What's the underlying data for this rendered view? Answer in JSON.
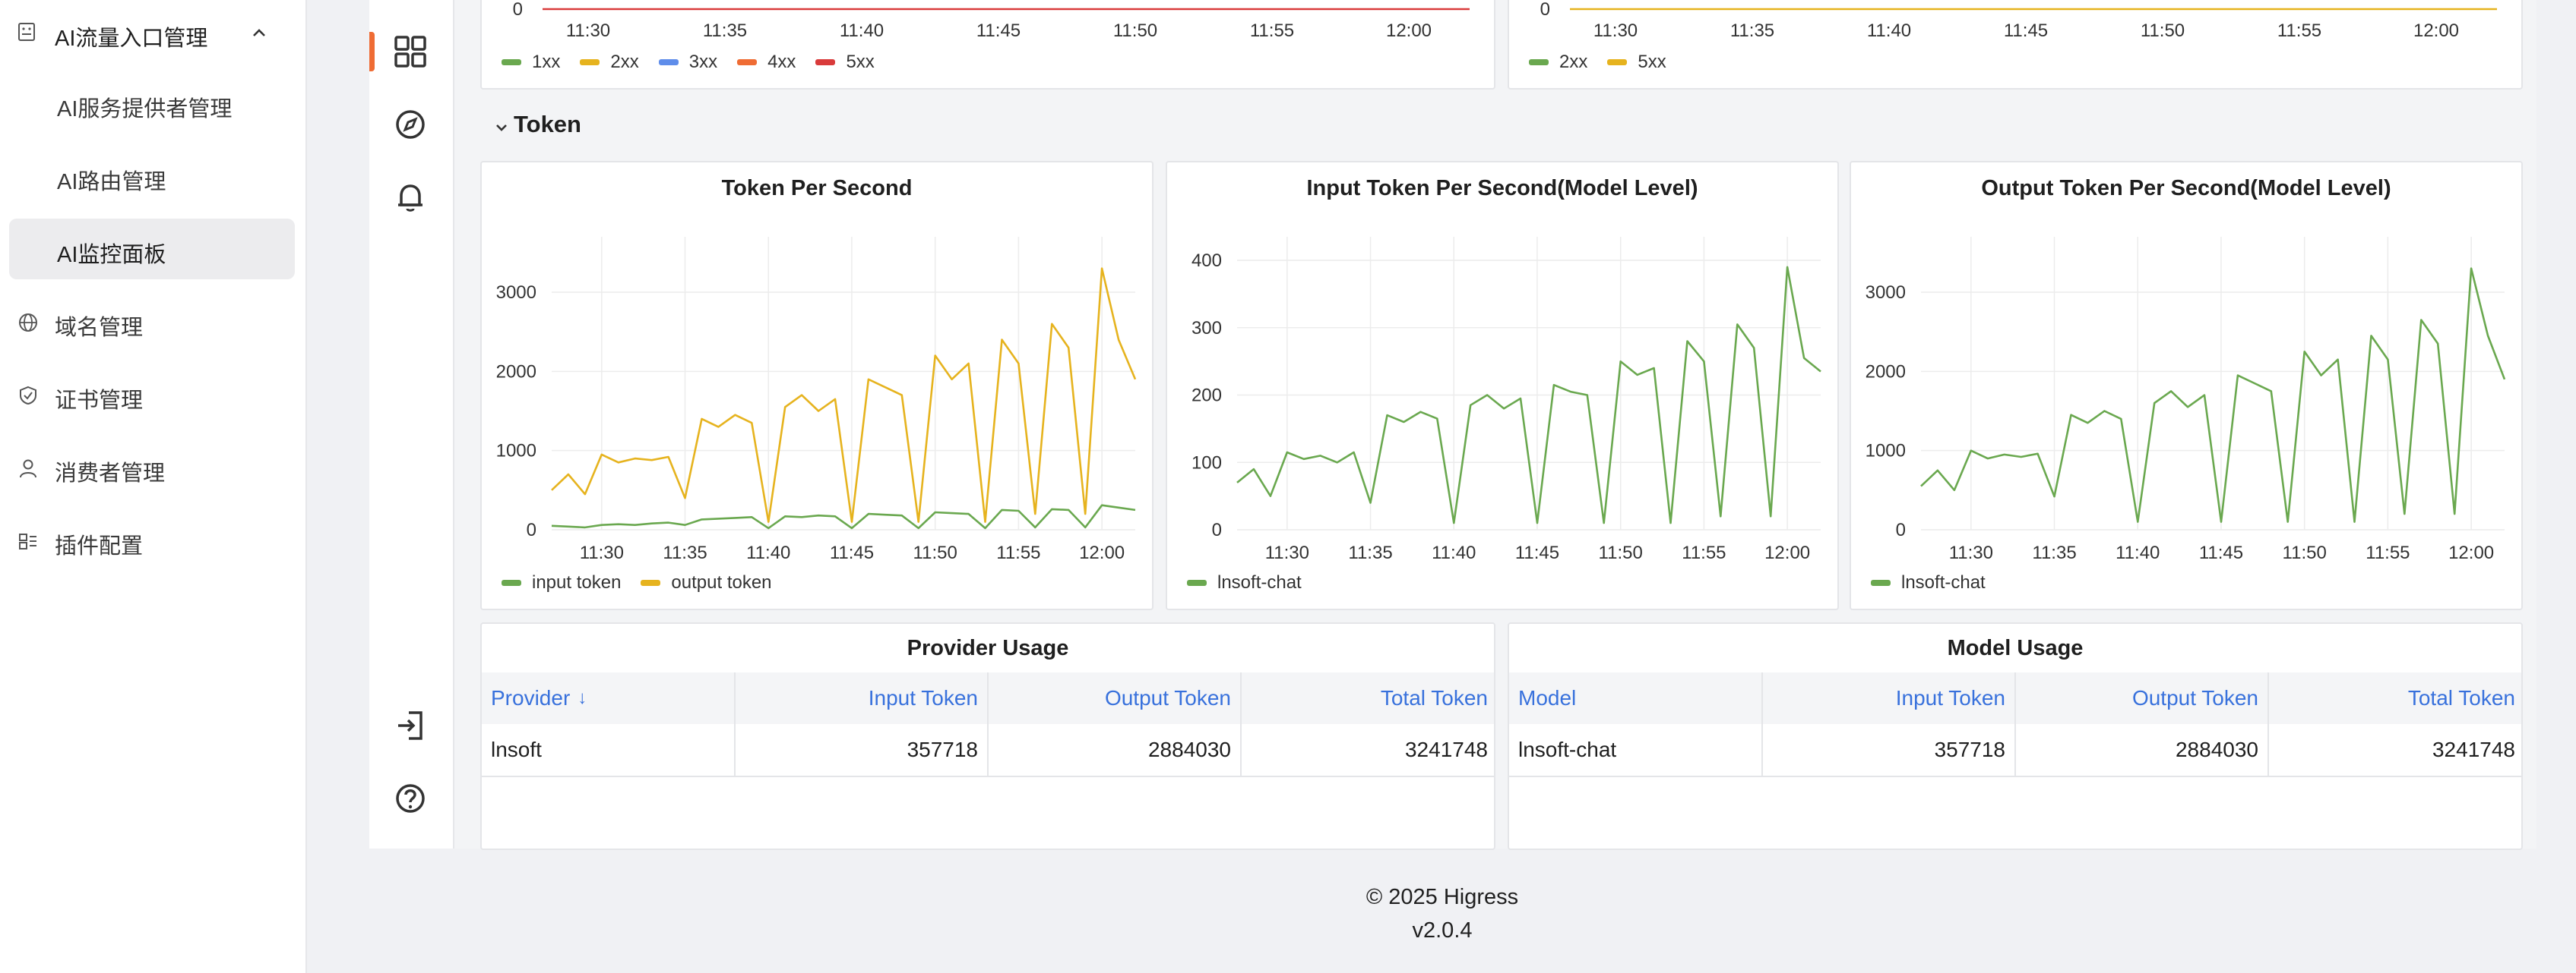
{
  "sidebar": {
    "group_label": "AI流量入口管理",
    "sub_items": [
      {
        "label": "AI服务提供者管理"
      },
      {
        "label": "AI路由管理"
      },
      {
        "label": "AI监控面板"
      }
    ],
    "items": [
      {
        "label": "域名管理",
        "icon": "globe-icon"
      },
      {
        "label": "证书管理",
        "icon": "shield-check-icon"
      },
      {
        "label": "消费者管理",
        "icon": "user-icon"
      },
      {
        "label": "插件配置",
        "icon": "plugin-icon"
      }
    ]
  },
  "rail": {
    "icons": [
      "dashboard-grid-icon",
      "compass-icon",
      "bell-icon",
      "sign-in-icon",
      "help-icon"
    ]
  },
  "top_charts": {
    "left": {
      "x_ticks": [
        "11:30",
        "11:35",
        "11:40",
        "11:45",
        "11:50",
        "11:55",
        "12:00"
      ],
      "y_zero": "0",
      "legend": [
        {
          "name": "1xx",
          "color": "#6aa84f"
        },
        {
          "name": "2xx",
          "color": "#e6b31e"
        },
        {
          "name": "3xx",
          "color": "#5f8dea"
        },
        {
          "name": "4xx",
          "color": "#ef6c34"
        },
        {
          "name": "5xx",
          "color": "#d93b3b"
        }
      ]
    },
    "right": {
      "x_ticks": [
        "11:30",
        "11:35",
        "11:40",
        "11:45",
        "11:50",
        "11:55",
        "12:00"
      ],
      "y_zero": "0",
      "legend": [
        {
          "name": "2xx",
          "color": "#6aa84f"
        },
        {
          "name": "5xx",
          "color": "#e6b31e"
        }
      ]
    }
  },
  "token_row": {
    "title": "Token"
  },
  "chart_data": [
    {
      "type": "line",
      "title": "Token Per Second",
      "x": [
        "11:27",
        "11:28",
        "11:29",
        "11:30",
        "11:31",
        "11:32",
        "11:33",
        "11:34",
        "11:35",
        "11:36",
        "11:37",
        "11:38",
        "11:39",
        "11:40",
        "11:41",
        "11:42",
        "11:43",
        "11:44",
        "11:45",
        "11:46",
        "11:47",
        "11:48",
        "11:49",
        "11:50",
        "11:51",
        "11:52",
        "11:53",
        "11:54",
        "11:55",
        "11:56",
        "11:57",
        "11:58",
        "11:59",
        "12:00",
        "12:01",
        "12:02"
      ],
      "x_ticks": [
        "11:30",
        "11:35",
        "11:40",
        "11:45",
        "11:50",
        "11:55",
        "12:00"
      ],
      "y_ticks": [
        "0",
        "1000",
        "2000",
        "3000"
      ],
      "ylim": [
        0,
        3700
      ],
      "series": [
        {
          "name": "input token",
          "color": "#6aa84f",
          "values": [
            50,
            40,
            30,
            60,
            70,
            60,
            80,
            90,
            60,
            130,
            140,
            150,
            160,
            20,
            170,
            160,
            180,
            170,
            20,
            200,
            190,
            180,
            20,
            220,
            210,
            200,
            20,
            250,
            240,
            30,
            260,
            250,
            30,
            310,
            280,
            250
          ]
        },
        {
          "name": "output token",
          "color": "#e6b31e",
          "values": [
            500,
            700,
            450,
            950,
            850,
            900,
            880,
            920,
            400,
            1400,
            1300,
            1450,
            1350,
            100,
            1550,
            1700,
            1500,
            1650,
            100,
            1900,
            1800,
            1700,
            100,
            2200,
            1900,
            2100,
            100,
            2400,
            2100,
            200,
            2600,
            2300,
            200,
            3300,
            2400,
            1900
          ]
        }
      ]
    },
    {
      "type": "line",
      "title": "Input Token Per Second(Model Level)",
      "x": [
        "11:27",
        "11:28",
        "11:29",
        "11:30",
        "11:31",
        "11:32",
        "11:33",
        "11:34",
        "11:35",
        "11:36",
        "11:37",
        "11:38",
        "11:39",
        "11:40",
        "11:41",
        "11:42",
        "11:43",
        "11:44",
        "11:45",
        "11:46",
        "11:47",
        "11:48",
        "11:49",
        "11:50",
        "11:51",
        "11:52",
        "11:53",
        "11:54",
        "11:55",
        "11:56",
        "11:57",
        "11:58",
        "11:59",
        "12:00",
        "12:01",
        "12:02"
      ],
      "x_ticks": [
        "11:30",
        "11:35",
        "11:40",
        "11:45",
        "11:50",
        "11:55",
        "12:00"
      ],
      "y_ticks": [
        "0",
        "100",
        "200",
        "300",
        "400"
      ],
      "ylim": [
        0,
        435
      ],
      "series": [
        {
          "name": "lnsoft-chat",
          "color": "#6aa84f",
          "values": [
            70,
            90,
            50,
            115,
            105,
            110,
            100,
            115,
            40,
            170,
            160,
            175,
            165,
            10,
            185,
            200,
            180,
            195,
            10,
            215,
            205,
            200,
            10,
            250,
            230,
            240,
            10,
            280,
            250,
            20,
            305,
            270,
            20,
            390,
            255,
            235
          ]
        }
      ]
    },
    {
      "type": "line",
      "title": "Output Token Per Second(Model Level)",
      "x": [
        "11:27",
        "11:28",
        "11:29",
        "11:30",
        "11:31",
        "11:32",
        "11:33",
        "11:34",
        "11:35",
        "11:36",
        "11:37",
        "11:38",
        "11:39",
        "11:40",
        "11:41",
        "11:42",
        "11:43",
        "11:44",
        "11:45",
        "11:46",
        "11:47",
        "11:48",
        "11:49",
        "11:50",
        "11:51",
        "11:52",
        "11:53",
        "11:54",
        "11:55",
        "11:56",
        "11:57",
        "11:58",
        "11:59",
        "12:00",
        "12:01",
        "12:02"
      ],
      "x_ticks": [
        "11:30",
        "11:35",
        "11:40",
        "11:45",
        "11:50",
        "11:55",
        "12:00"
      ],
      "y_ticks": [
        "0",
        "1000",
        "2000",
        "3000"
      ],
      "ylim": [
        0,
        3700
      ],
      "series": [
        {
          "name": "lnsoft-chat",
          "color": "#6aa84f",
          "values": [
            550,
            750,
            500,
            1000,
            900,
            950,
            920,
            960,
            420,
            1450,
            1350,
            1500,
            1400,
            100,
            1600,
            1750,
            1550,
            1700,
            100,
            1950,
            1850,
            1750,
            100,
            2250,
            1950,
            2150,
            100,
            2450,
            2150,
            200,
            2650,
            2350,
            200,
            3300,
            2450,
            1900
          ]
        }
      ]
    }
  ],
  "provider_usage": {
    "title": "Provider Usage",
    "columns": [
      "Provider",
      "Input Token",
      "Output Token",
      "Total Token"
    ],
    "rows": [
      [
        "lnsoft",
        "357718",
        "2884030",
        "3241748"
      ]
    ]
  },
  "model_usage": {
    "title": "Model Usage",
    "columns": [
      "Model",
      "Input Token",
      "Output Token",
      "Total Token"
    ],
    "rows": [
      [
        "lnsoft-chat",
        "357718",
        "2884030",
        "3241748"
      ]
    ]
  },
  "footer": {
    "copyright": "© 2025 Higress",
    "version": "v2.0.4"
  }
}
